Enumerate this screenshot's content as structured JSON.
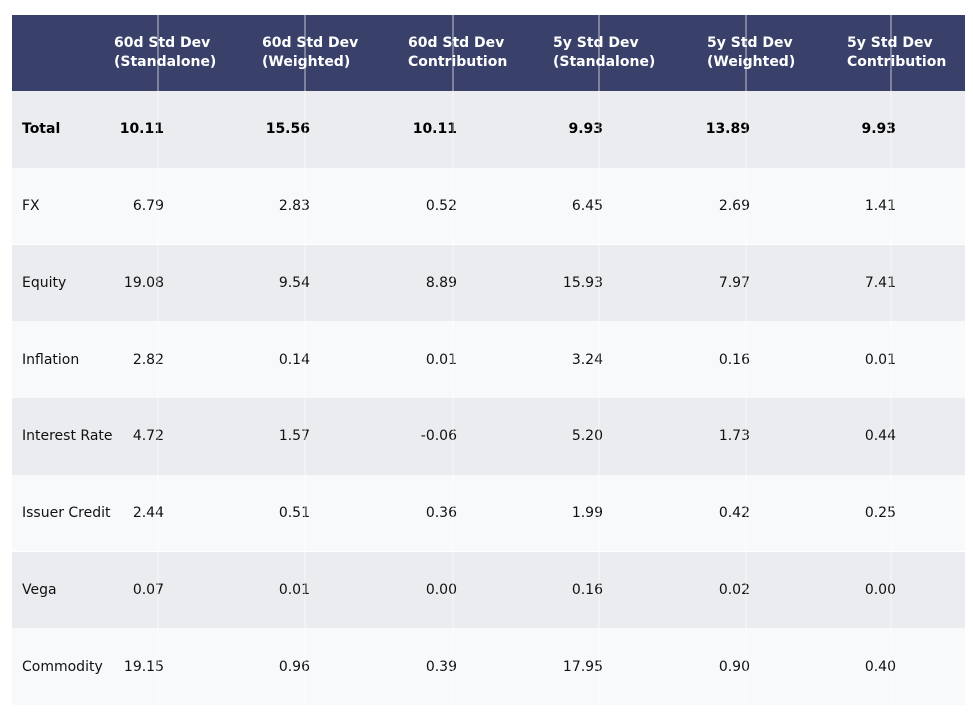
{
  "chart_data": {
    "type": "table",
    "columns": [
      "",
      "60d Std Dev\n(Standalone)",
      "60d Std Dev\n(Weighted)",
      "60d Std Dev\nContribution",
      "5y Std Dev\n(Standalone)",
      "5y Std Dev\n(Weighted)",
      "5y Std Dev\nContribution"
    ],
    "rows": [
      {
        "label": "Total",
        "bold": true,
        "values": [
          "10.11",
          "15.56",
          "10.11",
          "9.93",
          "13.89",
          "9.93"
        ]
      },
      {
        "label": "FX",
        "bold": false,
        "values": [
          "6.79",
          "2.83",
          "0.52",
          "6.45",
          "2.69",
          "1.41"
        ]
      },
      {
        "label": "Equity",
        "bold": false,
        "values": [
          "19.08",
          "9.54",
          "8.89",
          "15.93",
          "7.97",
          "7.41"
        ]
      },
      {
        "label": "Inflation",
        "bold": false,
        "values": [
          "2.82",
          "0.14",
          "0.01",
          "3.24",
          "0.16",
          "0.01"
        ]
      },
      {
        "label": "Interest Rate",
        "bold": false,
        "values": [
          "4.72",
          "1.57",
          "-0.06",
          "5.20",
          "1.73",
          "0.44"
        ]
      },
      {
        "label": "Issuer Credit",
        "bold": false,
        "values": [
          "2.44",
          "0.51",
          "0.36",
          "1.99",
          "0.42",
          "0.25"
        ]
      },
      {
        "label": "Vega",
        "bold": false,
        "values": [
          "0.07",
          "0.01",
          "0.00",
          "0.16",
          "0.02",
          "0.00"
        ]
      },
      {
        "label": "Commodity",
        "bold": false,
        "values": [
          "19.15",
          "0.96",
          "0.39",
          "17.95",
          "0.90",
          "0.40"
        ]
      }
    ]
  },
  "colors": {
    "header_bg": "#394069",
    "header_text": "#ffffff",
    "row_odd": "#ebecf0",
    "row_even": "#f8f9fb",
    "text": "#111111"
  }
}
